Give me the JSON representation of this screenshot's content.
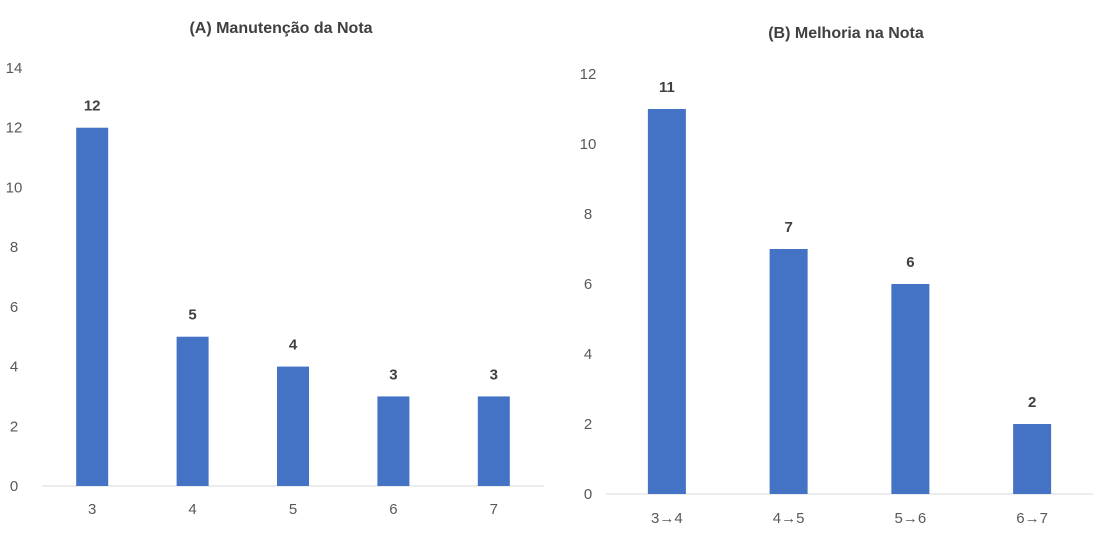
{
  "colors": {
    "bar": "#4472C4",
    "axis_line": "#D9D9D9",
    "tick_text": "#595959",
    "title_text": "#404040"
  },
  "chart_data": [
    {
      "type": "bar",
      "title": "(A) Manutenção  da Nota",
      "xlabel": "",
      "ylabel": "",
      "categories": [
        "3",
        "4",
        "5",
        "6",
        "7"
      ],
      "values": [
        12,
        5,
        4,
        3,
        3
      ],
      "ylim": [
        0,
        14
      ],
      "yticks": [
        0,
        2,
        4,
        6,
        8,
        10,
        12,
        14
      ],
      "data_labels": true,
      "grid": false,
      "legend": "none"
    },
    {
      "type": "bar",
      "title": "(B) Melhoria  na Nota",
      "xlabel": "",
      "ylabel": "",
      "categories": [
        "3→4",
        "4→5",
        "5→6",
        "6→7"
      ],
      "values": [
        11,
        7,
        6,
        2
      ],
      "ylim": [
        0,
        12
      ],
      "yticks": [
        0,
        2,
        4,
        6,
        8,
        10,
        12
      ],
      "data_labels": true,
      "grid": false,
      "legend": "none"
    }
  ]
}
